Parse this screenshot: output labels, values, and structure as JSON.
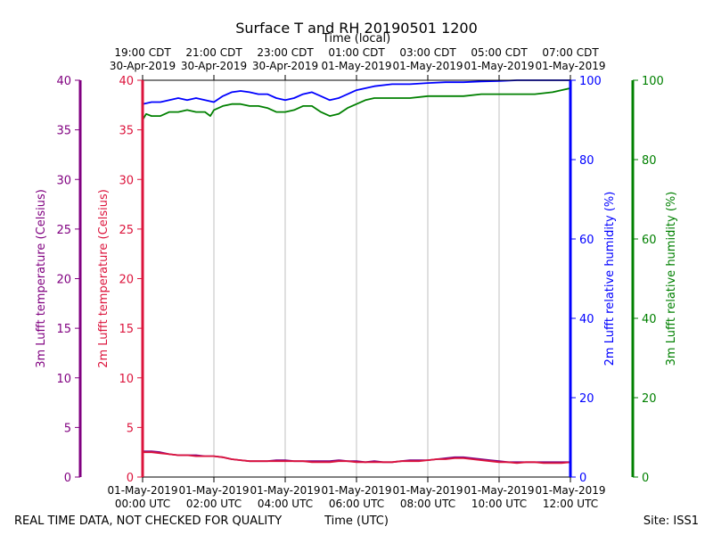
{
  "chart_data": {
    "type": "line",
    "title": "Surface T and RH 20190501 1200",
    "top_axis_label": "Time (local)",
    "top_ticks": [
      {
        "line1": "19:00 CDT",
        "line2": "30-Apr-2019"
      },
      {
        "line1": "21:00 CDT",
        "line2": "30-Apr-2019"
      },
      {
        "line1": "23:00 CDT",
        "line2": "30-Apr-2019"
      },
      {
        "line1": "01:00 CDT",
        "line2": "01-May-2019"
      },
      {
        "line1": "03:00 CDT",
        "line2": "01-May-2019"
      },
      {
        "line1": "05:00 CDT",
        "line2": "01-May-2019"
      },
      {
        "line1": "07:00 CDT",
        "line2": "01-May-2019"
      }
    ],
    "bottom_axis_label": "Time (UTC)",
    "bottom_ticks": [
      {
        "line1": "01-May-2019",
        "line2": "00:00 UTC"
      },
      {
        "line1": "01-May-2019",
        "line2": "02:00 UTC"
      },
      {
        "line1": "01-May-2019",
        "line2": "04:00 UTC"
      },
      {
        "line1": "01-May-2019",
        "line2": "06:00 UTC"
      },
      {
        "line1": "01-May-2019",
        "line2": "08:00 UTC"
      },
      {
        "line1": "01-May-2019",
        "line2": "10:00 UTC"
      },
      {
        "line1": "01-May-2019",
        "line2": "12:00 UTC"
      }
    ],
    "xlim_hours": [
      0,
      12
    ],
    "grid_x_hours": [
      2,
      4,
      6,
      8,
      10
    ],
    "axes": {
      "temp3m": {
        "label": "3m Lufft temperature (Celsius)",
        "color": "#800080",
        "range": [
          0,
          40
        ],
        "ticks": [
          0,
          5,
          10,
          15,
          20,
          25,
          30,
          35,
          40
        ]
      },
      "temp2m": {
        "label": "2m Lufft temperature (Celsius)",
        "color": "#dc143c",
        "range": [
          0,
          40
        ],
        "ticks": [
          0,
          5,
          10,
          15,
          20,
          25,
          30,
          35,
          40
        ]
      },
      "rh2m": {
        "label": "2m Lufft relative humidity (%)",
        "color": "#0000ff",
        "range": [
          0,
          100
        ],
        "ticks": [
          0,
          20,
          40,
          60,
          80,
          100
        ]
      },
      "rh3m": {
        "label": "3m Lufft relative humidity (%)",
        "color": "#008000",
        "range": [
          0,
          100
        ],
        "ticks": [
          0,
          20,
          40,
          60,
          80,
          100
        ]
      }
    },
    "series": [
      {
        "name": "2m Lufft relative humidity",
        "axis": "rh2m",
        "color": "#0000ff",
        "x": [
          0,
          0.25,
          0.5,
          0.75,
          1,
          1.25,
          1.5,
          1.75,
          2,
          2.25,
          2.5,
          2.75,
          3,
          3.25,
          3.5,
          3.75,
          4,
          4.25,
          4.5,
          4.75,
          5,
          5.25,
          5.5,
          5.75,
          6,
          6.5,
          7,
          7.5,
          8,
          8.5,
          9,
          9.5,
          10,
          10.5,
          11,
          11.5,
          12
        ],
        "values": [
          94,
          94.5,
          94.5,
          95,
          95.5,
          95,
          95.5,
          95,
          94.5,
          96,
          97,
          97.3,
          97,
          96.5,
          96.5,
          95.5,
          95,
          95.5,
          96.5,
          97,
          96,
          95,
          95.5,
          96.5,
          97.5,
          98.5,
          99,
          99,
          99.3,
          99.5,
          99.5,
          99.7,
          99.8,
          100,
          100,
          100,
          100
        ]
      },
      {
        "name": "3m Lufft relative humidity",
        "axis": "rh3m",
        "color": "#008000",
        "x": [
          0,
          0.1,
          0.25,
          0.5,
          0.75,
          1,
          1.25,
          1.5,
          1.75,
          1.9,
          2,
          2.25,
          2.5,
          2.75,
          3,
          3.25,
          3.5,
          3.75,
          4,
          4.25,
          4.5,
          4.75,
          5,
          5.25,
          5.5,
          5.75,
          6,
          6.25,
          6.5,
          7,
          7.5,
          8,
          8.5,
          9,
          9.5,
          10,
          10.5,
          11,
          11.5,
          12
        ],
        "values": [
          90,
          91.5,
          91,
          91,
          92,
          92,
          92.5,
          92,
          92,
          91,
          92.5,
          93.5,
          94,
          94,
          93.5,
          93.5,
          93,
          92,
          92,
          92.5,
          93.5,
          93.5,
          92,
          91,
          91.5,
          93,
          94,
          95,
          95.5,
          95.5,
          95.5,
          96,
          96,
          96,
          96.5,
          96.5,
          96.5,
          96.5,
          97,
          98
        ]
      },
      {
        "name": "3m Lufft temperature",
        "axis": "temp3m",
        "color": "#800080",
        "x": [
          0,
          0.25,
          0.5,
          0.75,
          1,
          1.25,
          1.5,
          1.75,
          2,
          2.25,
          2.5,
          2.75,
          3,
          3.25,
          3.5,
          3.75,
          4,
          4.25,
          4.5,
          4.75,
          5,
          5.25,
          5.5,
          5.75,
          6,
          6.25,
          6.5,
          6.75,
          7,
          7.25,
          7.5,
          7.75,
          8,
          8.25,
          8.5,
          8.75,
          9,
          9.25,
          9.5,
          9.75,
          10,
          10.25,
          10.5,
          10.75,
          11,
          11.25,
          11.5,
          11.75,
          12
        ],
        "values": [
          2.6,
          2.6,
          2.5,
          2.3,
          2.2,
          2.2,
          2.2,
          2.1,
          2.1,
          2.0,
          1.8,
          1.7,
          1.6,
          1.6,
          1.6,
          1.7,
          1.7,
          1.6,
          1.6,
          1.6,
          1.6,
          1.6,
          1.7,
          1.6,
          1.6,
          1.5,
          1.6,
          1.5,
          1.5,
          1.6,
          1.7,
          1.7,
          1.7,
          1.8,
          1.9,
          2.0,
          2.0,
          1.9,
          1.8,
          1.7,
          1.6,
          1.5,
          1.5,
          1.5,
          1.5,
          1.5,
          1.5,
          1.5,
          1.5
        ]
      },
      {
        "name": "2m Lufft temperature",
        "axis": "temp2m",
        "color": "#dc143c",
        "x": [
          0,
          0.25,
          0.5,
          0.75,
          1,
          1.25,
          1.5,
          1.75,
          2,
          2.25,
          2.5,
          2.75,
          3,
          3.25,
          3.5,
          3.75,
          4,
          4.25,
          4.5,
          4.75,
          5,
          5.25,
          5.5,
          5.75,
          6,
          6.25,
          6.5,
          6.75,
          7,
          7.25,
          7.5,
          7.75,
          8,
          8.25,
          8.5,
          8.75,
          9,
          9.25,
          9.5,
          9.75,
          10,
          10.25,
          10.5,
          10.75,
          11,
          11.25,
          11.5,
          11.75,
          12
        ],
        "values": [
          2.5,
          2.5,
          2.4,
          2.3,
          2.2,
          2.2,
          2.1,
          2.1,
          2.1,
          2.0,
          1.8,
          1.7,
          1.6,
          1.6,
          1.6,
          1.6,
          1.6,
          1.6,
          1.6,
          1.5,
          1.5,
          1.5,
          1.6,
          1.6,
          1.5,
          1.5,
          1.5,
          1.5,
          1.5,
          1.6,
          1.6,
          1.6,
          1.7,
          1.8,
          1.8,
          1.9,
          1.9,
          1.8,
          1.7,
          1.6,
          1.5,
          1.5,
          1.4,
          1.5,
          1.5,
          1.4,
          1.4,
          1.4,
          1.5
        ]
      }
    ]
  },
  "footer": {
    "left_note": "REAL TIME DATA, NOT CHECKED FOR QUALITY",
    "site": "Site: ISS1"
  }
}
